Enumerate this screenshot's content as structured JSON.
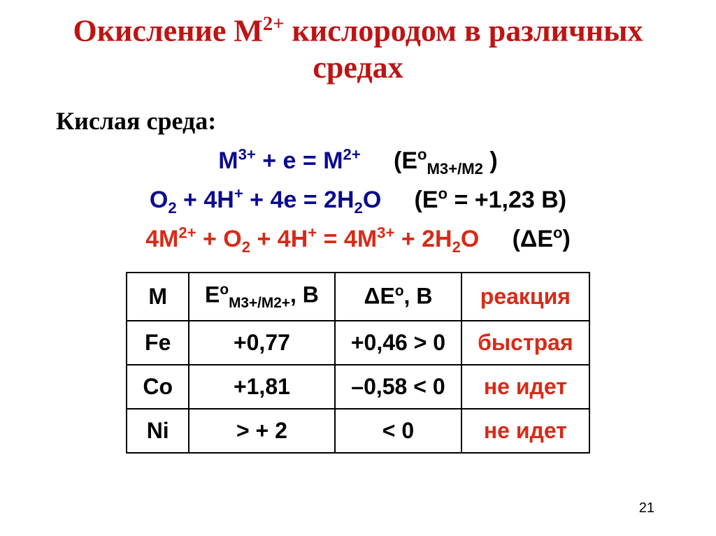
{
  "title": {
    "pre": "Окисление М",
    "sup": "2+",
    "post": " кислородом в различных средах"
  },
  "section_label": "Кислая среда:",
  "equations": {
    "eq1": {
      "lhs_pre": "M",
      "lhs_sup1": "3+",
      "lhs_mid": " + e = M",
      "lhs_sup2": "2+",
      "rhs_open": "(E",
      "rhs_o": "o",
      "rhs_sub": "M3+/M2",
      "rhs_close": " )"
    },
    "eq2": {
      "lhs_a": "O",
      "lhs_a_sub": "2",
      "lhs_b": " + 4H",
      "lhs_b_sup": "+",
      "lhs_c": " + 4e = 2H",
      "lhs_c_sub": "2",
      "lhs_d": "O",
      "rhs_open": "(E",
      "rhs_o": "o",
      "rhs_eq": " = +1,23 В)"
    },
    "eq3": {
      "a": "4M",
      "a_sup": "2+",
      "b": " + O",
      "b_sub": "2",
      "c": " + 4H",
      "c_sup": "+",
      "d": " = 4M",
      "d_sup": "3+",
      "e": " + 2H",
      "e_sub": "2",
      "f": "O",
      "rhs_open": "(",
      "rhs_delta": "Δ",
      "rhs_E": "E",
      "rhs_o": "o",
      "rhs_close": ")"
    }
  },
  "table": {
    "headers": {
      "c1": "M",
      "c2_pre": "E",
      "c2_o": "o",
      "c2_sub": "M3+/M2+",
      "c2_post": ", В",
      "c3_delta": "Δ",
      "c3_E": "E",
      "c3_o": "o",
      "c3_post": ", В",
      "c4": "реакция"
    },
    "rows": [
      {
        "m": "Fe",
        "e": "+0,77",
        "de": "+0,46 > 0",
        "r": "быстрая"
      },
      {
        "m": "Co",
        "e": "+1,81",
        "de": "–0,58 < 0",
        "r": "не идет"
      },
      {
        "m": "Ni",
        "e": "> + 2",
        "de": "< 0",
        "r": "не идет"
      }
    ]
  },
  "page_number": "21",
  "colors": {
    "title": "#be1414",
    "navy": "#0b0b8f",
    "red": "#d82a17",
    "black": "#000000",
    "background": "#ffffff"
  },
  "fonts": {
    "title_size_pt": 44,
    "body_size_pt": 34,
    "table_size_pt": 32
  }
}
